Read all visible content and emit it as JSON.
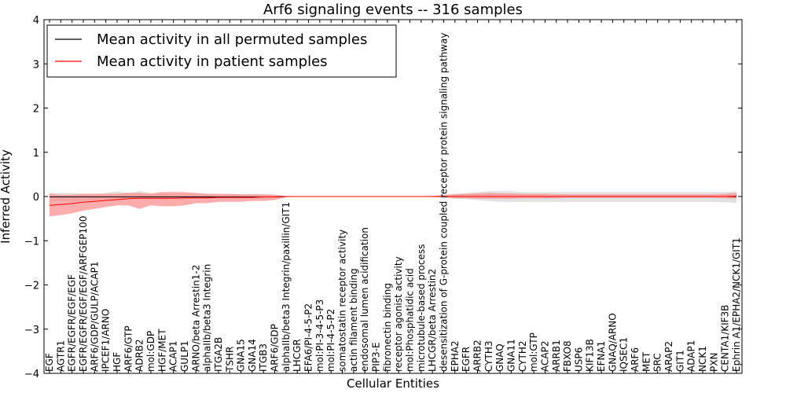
{
  "chart_data": {
    "type": "line",
    "title": "Arf6 signaling events -- 316 samples",
    "xlabel": "Cellular Entities",
    "ylabel": "Inferred Activity",
    "ylim": [
      -4,
      4
    ],
    "yticks": [
      -4,
      -3,
      -2,
      -1,
      0,
      1,
      2,
      3,
      4
    ],
    "grid": false,
    "legend_position": "top-left",
    "colors": {
      "permuted": "#000000",
      "patient": "#ff0000",
      "permuted_band": "#c8c8c8",
      "patient_band": "#ff8080"
    },
    "categories": [
      "EGF",
      "AGTR1",
      "EGFR/EGFR/EGF/EGF",
      "EGFR/EGFR/EGF/EGF/ARFGEP100",
      "ARF6/GDP/GULP/ACAP1",
      "IPCEF1/ARNO",
      "HGF",
      "ARF6/GTP",
      "ADRB2",
      "mol:GDP",
      "HGF/MET",
      "ACAP1",
      "GULP1",
      "ARNO/beta Arrestin1-2",
      "alphaIIb/beta3 Integrin",
      "ITGA2B",
      "TSHR",
      "GNA15",
      "GNA14",
      "ITGB3",
      "ARF6/GDP",
      "alphaIIb/beta3 Integrin/paxillin/GIT1",
      "LHCGR",
      "EFA6/PI-4-5-P2",
      "mol:PI-3-4-5-P3",
      "mol:PI-4-5-P2",
      "somatostatin receptor activity",
      "actin filament binding",
      "endosomal lumen acidification",
      "PIP3-E",
      "fibronectin binding",
      "receptor agonist activity",
      "mol:Phosphatidic acid",
      "microtubule-based process",
      "LHCGR/beta Arrestin2",
      "desensitization of G-protein coupled receptor protein signaling pathway",
      "EPHA2",
      "EGFR",
      "ARRB2",
      "CYTH3",
      "GNAQ",
      "GNA11",
      "CYTH2",
      "mol:GTP",
      "ACAP2",
      "ARRB1",
      "FBXO8",
      "USP6",
      "KIF13B",
      "EFNA1",
      "GNAQ/ARNO",
      "IQSEC1",
      "ARF6",
      "MET",
      "SRC",
      "ARAP2",
      "GIT1",
      "ADAP1",
      "NCK1",
      "PXN",
      "CENTA1/KIF3B",
      "Ephrin A1/EPHA2/NCK1/GIT1"
    ],
    "series": [
      {
        "name": "Mean activity in all permuted samples",
        "values": [
          -0.01,
          -0.01,
          -0.01,
          -0.01,
          -0.01,
          -0.01,
          -0.01,
          -0.01,
          -0.01,
          -0.01,
          -0.01,
          -0.01,
          -0.01,
          -0.01,
          -0.01,
          -0.01,
          -0.01,
          -0.01,
          -0.01,
          -0.01,
          -0.01,
          0,
          0,
          0,
          0,
          0,
          0,
          0,
          0,
          0,
          0,
          0,
          0,
          0,
          0,
          0,
          0,
          0,
          0,
          0,
          0,
          0,
          0,
          0,
          0,
          0,
          0,
          0,
          0,
          0,
          0,
          0,
          0,
          0,
          0,
          0,
          0,
          0,
          0,
          0,
          0,
          0
        ],
        "lower": [
          -0.12,
          -0.1,
          -0.12,
          -0.1,
          -0.1,
          -0.06,
          -0.06,
          -0.06,
          -0.06,
          -0.06,
          -0.06,
          -0.06,
          -0.06,
          -0.06,
          -0.06,
          -0.05,
          -0.05,
          -0.05,
          -0.05,
          -0.05,
          -0.04,
          -0.01,
          0,
          0,
          0,
          0,
          0,
          0,
          0,
          0,
          0,
          0,
          0,
          0,
          -0.02,
          -0.03,
          -0.05,
          -0.06,
          -0.08,
          -0.1,
          -0.12,
          -0.12,
          -0.12,
          -0.12,
          -0.12,
          -0.12,
          -0.12,
          -0.12,
          -0.12,
          -0.12,
          -0.12,
          -0.12,
          -0.12,
          -0.12,
          -0.12,
          -0.12,
          -0.12,
          -0.12,
          -0.12,
          -0.13,
          -0.13,
          -0.15
        ],
        "upper": [
          0.08,
          0.08,
          0.08,
          0.06,
          0.06,
          0.08,
          0.12,
          0.08,
          0.12,
          0.08,
          0.08,
          0.06,
          0.06,
          0.06,
          0.06,
          0.05,
          0.05,
          0.05,
          0.05,
          0.05,
          0.04,
          0.01,
          0,
          0,
          0,
          0,
          0,
          0,
          0,
          0,
          0,
          0,
          0,
          0,
          0.02,
          0.04,
          0.06,
          0.08,
          0.1,
          0.12,
          0.12,
          0.12,
          0.1,
          0.1,
          0.1,
          0.1,
          0.1,
          0.1,
          0.1,
          0.1,
          0.1,
          0.1,
          0.1,
          0.1,
          0.1,
          0.1,
          0.1,
          0.1,
          0.1,
          0.1,
          0.1,
          0.12
        ]
      },
      {
        "name": "Mean activity in patient samples",
        "values": [
          -0.2,
          -0.18,
          -0.16,
          -0.13,
          -0.11,
          -0.09,
          -0.07,
          -0.05,
          -0.04,
          -0.04,
          -0.04,
          -0.04,
          -0.03,
          -0.03,
          -0.03,
          -0.02,
          -0.02,
          -0.02,
          -0.02,
          -0.01,
          -0.01,
          0,
          0,
          0,
          0,
          0,
          0,
          0,
          0,
          0,
          0,
          0,
          0,
          0,
          0,
          0,
          0,
          0,
          0,
          0,
          0,
          0,
          0,
          0,
          0,
          0,
          0,
          0,
          0,
          0,
          0,
          0,
          0,
          0,
          0,
          0,
          0,
          0,
          0,
          0,
          0,
          0.01
        ],
        "lower": [
          -0.45,
          -0.42,
          -0.38,
          -0.32,
          -0.28,
          -0.24,
          -0.2,
          -0.2,
          -0.28,
          -0.2,
          -0.22,
          -0.22,
          -0.2,
          -0.15,
          -0.15,
          -0.12,
          -0.12,
          -0.12,
          -0.1,
          -0.1,
          -0.08,
          -0.02,
          0,
          0,
          0,
          0,
          0,
          0,
          0,
          0,
          0,
          0,
          0,
          0,
          -0.01,
          -0.02,
          -0.04,
          -0.04,
          -0.05,
          -0.05,
          -0.05,
          -0.05,
          -0.04,
          -0.04,
          -0.04,
          -0.04,
          -0.03,
          -0.03,
          -0.03,
          -0.03,
          -0.03,
          -0.03,
          -0.03,
          -0.03,
          -0.03,
          -0.03,
          -0.03,
          -0.03,
          -0.03,
          -0.03,
          -0.04,
          -0.05
        ],
        "upper": [
          0.06,
          0.04,
          0.04,
          0.06,
          0.06,
          0.06,
          0.06,
          0.08,
          0.08,
          0.06,
          0.1,
          0.1,
          0.1,
          0.08,
          0.06,
          0.06,
          0.06,
          0.05,
          0.05,
          0.05,
          0.04,
          0.01,
          0,
          0,
          0,
          0,
          0,
          0,
          0,
          0,
          0,
          0,
          0,
          0,
          0.01,
          0.03,
          0.05,
          0.06,
          0.07,
          0.08,
          0.07,
          0.07,
          0.06,
          0.06,
          0.06,
          0.05,
          0.05,
          0.05,
          0.05,
          0.05,
          0.05,
          0.05,
          0.05,
          0.05,
          0.05,
          0.05,
          0.05,
          0.05,
          0.05,
          0.05,
          0.06,
          0.08
        ]
      }
    ]
  }
}
